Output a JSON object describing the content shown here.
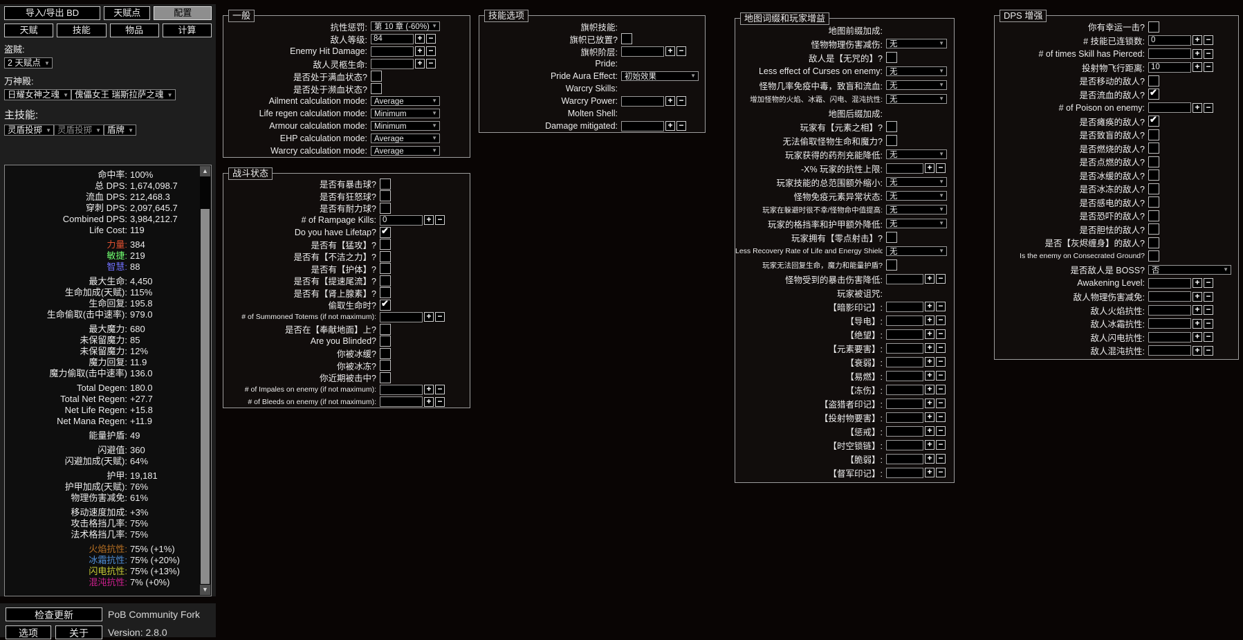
{
  "colors": {
    "str": "#E05030",
    "dex": "#70FF70",
    "int": "#7070FF",
    "fire": "#B97123",
    "cold": "#4F8FD8",
    "lightning": "#C8CC35",
    "chaos": "#D02090"
  },
  "sidebar": {
    "top_buttons": [
      {
        "label": "导入/导出 BD"
      },
      {
        "label": "天赋点"
      },
      {
        "label": "配置",
        "selected": true
      }
    ],
    "tabs": [
      "天赋",
      "技能",
      "物品",
      "计算"
    ],
    "selectors": [
      {
        "label": "盗贼:",
        "dropdowns": [
          {
            "value": "2 天赋点"
          }
        ]
      },
      {
        "label": "万神殿:",
        "dropdowns": [
          {
            "value": "日耀女神之魂"
          },
          {
            "value": "傀儡女王 瑞斯拉萨之魂"
          }
        ]
      },
      {
        "label": "主技能:",
        "large": true,
        "dropdowns": [
          {
            "value": "灵盾投掷"
          },
          {
            "value": "灵盾投掷",
            "dim": true
          },
          {
            "value": "盾牌",
            "narrow": true
          }
        ]
      }
    ],
    "stats": [
      [
        {
          "l": "命中率:",
          "v": "100%"
        },
        {
          "l": "总 DPS:",
          "v": "1,674,098.7"
        },
        {
          "l": "流血 DPS:",
          "v": "212,468.3"
        },
        {
          "l": "穿刺 DPS:",
          "v": "2,097,645.7"
        },
        {
          "l": "Combined DPS:",
          "v": "3,984,212.7"
        },
        {
          "l": "Life Cost:",
          "v": "119"
        }
      ],
      [
        {
          "l": "力量:",
          "v": "384",
          "c": "str"
        },
        {
          "l": "敏捷:",
          "v": "219",
          "c": "dex"
        },
        {
          "l": "智慧:",
          "v": "88",
          "c": "int"
        }
      ],
      [
        {
          "l": "最大生命:",
          "v": "4,450"
        },
        {
          "l": "生命加成(天赋):",
          "v": "115%"
        },
        {
          "l": "生命回复:",
          "v": "195.8"
        },
        {
          "l": "生命偷取(击中速率):",
          "v": "979.0"
        }
      ],
      [
        {
          "l": "最大魔力:",
          "v": "680"
        },
        {
          "l": "未保留魔力:",
          "v": "85"
        },
        {
          "l": "未保留魔力:",
          "v": "12%"
        },
        {
          "l": "魔力回复:",
          "v": "11.9"
        },
        {
          "l": "魔力偷取(击中速率)",
          "v": "136.0"
        }
      ],
      [
        {
          "l": "Total Degen:",
          "v": "180.0"
        },
        {
          "l": "Total Net Regen:",
          "v": "+27.7"
        },
        {
          "l": "Net Life Regen:",
          "v": "+15.8"
        },
        {
          "l": "Net Mana Regen:",
          "v": "+11.9"
        }
      ],
      [
        {
          "l": "能量护盾:",
          "v": "49"
        }
      ],
      [
        {
          "l": "闪避值:",
          "v": "360"
        },
        {
          "l": "闪避加成(天赋):",
          "v": "64%"
        }
      ],
      [
        {
          "l": "护甲:",
          "v": "19,181"
        },
        {
          "l": "护甲加成(天赋):",
          "v": "76%"
        },
        {
          "l": "物理伤害减免:",
          "v": "61%"
        }
      ],
      [
        {
          "l": "移动速度加成:",
          "v": "+3%"
        },
        {
          "l": "攻击格挡几率:",
          "v": "75%"
        },
        {
          "l": "法术格挡几率:",
          "v": "75%"
        }
      ],
      [
        {
          "l": "火焰抗性:",
          "v": "75% (+1%)",
          "c": "fire"
        },
        {
          "l": "冰霜抗性:",
          "v": "75% (+20%)",
          "c": "cold"
        },
        {
          "l": "闪电抗性:",
          "v": "75% (+13%)",
          "c": "lightning"
        },
        {
          "l": "混沌抗性:",
          "v": "7% (+0%)",
          "c": "chaos"
        }
      ]
    ],
    "footer": {
      "update_button": "检查更新",
      "brand": "PoB Community Fork",
      "options_button": "选项",
      "about_button": "关于",
      "version": "Version: 2.8.0"
    }
  },
  "sections": [
    {
      "id": "general",
      "title": "一般",
      "rows": [
        {
          "label": "抗性惩罚:",
          "type": "dd",
          "value": "第 10 章 (-60%)"
        },
        {
          "label": "敌人等级:",
          "type": "num",
          "value": "84"
        },
        {
          "label": "Enemy Hit Damage:",
          "type": "num",
          "value": ""
        },
        {
          "label": "敌人灵柩生命:",
          "type": "num",
          "value": ""
        },
        {
          "label": "是否处于满血状态?",
          "type": "check",
          "checked": false
        },
        {
          "label": "是否处于濒血状态?",
          "type": "check",
          "checked": false
        },
        {
          "label": "Ailment calculation mode:",
          "type": "dd",
          "value": "Average"
        },
        {
          "label": "Life regen calculation mode:",
          "type": "dd",
          "value": "Minimum"
        },
        {
          "label": "Armour calculation mode:",
          "type": "dd",
          "value": "Minimum"
        },
        {
          "label": "EHP calculation mode:",
          "type": "dd",
          "value": "Average"
        },
        {
          "label": "Warcry calculation mode:",
          "type": "dd",
          "value": "Average"
        }
      ]
    },
    {
      "id": "combat",
      "title": "战斗状态",
      "rows": [
        {
          "label": "是否有暴击球?",
          "type": "check",
          "checked": false
        },
        {
          "label": "是否有狂怒球?",
          "type": "check",
          "checked": false
        },
        {
          "label": "是否有耐力球?",
          "type": "check",
          "checked": false
        },
        {
          "label": "# of Rampage Kills:",
          "type": "num",
          "value": "0"
        },
        {
          "label": "Do you have Lifetap?",
          "type": "check",
          "checked": true
        },
        {
          "label": "是否有【猛攻】?",
          "type": "check",
          "checked": false
        },
        {
          "label": "是否有【不洁之力】?",
          "type": "check",
          "checked": false
        },
        {
          "label": "是否有【护体】?",
          "type": "check",
          "checked": false
        },
        {
          "label": "是否有【提速尾流】?",
          "type": "check",
          "checked": false
        },
        {
          "label": "是否有【肾上腺素】?",
          "type": "check",
          "checked": false
        },
        {
          "label": "偷取生命时?",
          "type": "check",
          "checked": true
        },
        {
          "label": "# of Summoned Totems (if not maximum):",
          "type": "num",
          "value": "",
          "sm": true
        },
        {
          "label": "是否在【奉献地面】上?",
          "type": "check",
          "checked": false
        },
        {
          "label": "Are you Blinded?",
          "type": "check",
          "checked": false
        },
        {
          "label": "你被冰缓?",
          "type": "check",
          "checked": false
        },
        {
          "label": "你被冰冻?",
          "type": "check",
          "checked": false
        },
        {
          "label": "你近期被击中?",
          "type": "check",
          "checked": false
        },
        {
          "label": "# of Impales on enemy (if not maximum):",
          "type": "num",
          "value": "",
          "sm": true
        },
        {
          "label": "# of Bleeds on enemy (if not maximum):",
          "type": "num",
          "value": "",
          "sm": true
        }
      ]
    },
    {
      "id": "skill",
      "title": "技能选项",
      "rows": [
        {
          "label": "旗帜技能:",
          "type": "none"
        },
        {
          "label": "旗帜已放置?",
          "type": "check",
          "checked": false
        },
        {
          "label": "旗帜阶层:",
          "type": "num",
          "value": ""
        },
        {
          "label": "Pride:",
          "type": "none"
        },
        {
          "label": "Pride Aura Effect:",
          "type": "dd",
          "value": "初始效果"
        },
        {
          "label": "Warcry Skills:",
          "type": "none"
        },
        {
          "label": "Warcry Power:",
          "type": "num",
          "value": ""
        },
        {
          "label": "Molten Shell:",
          "type": "none"
        },
        {
          "label": "Damage mitigated:",
          "type": "num",
          "value": ""
        }
      ]
    },
    {
      "id": "map",
      "title": "地图词缀和玩家增益",
      "rows": [
        {
          "label": "地图前缀加成:",
          "type": "none"
        },
        {
          "label": "怪物物理伤害减伤:",
          "type": "dd",
          "value": "无"
        },
        {
          "label": "敌人是【无咒的】?",
          "type": "check",
          "checked": false
        },
        {
          "label": "Less effect of Curses on enemy:",
          "type": "dd",
          "value": "无"
        },
        {
          "label": "怪物几率免疫中毒，致盲和流血:",
          "type": "dd",
          "value": "无"
        },
        {
          "label": "增加怪物的火焰、冰霜、闪电、混沌抗性:",
          "type": "dd",
          "value": "无",
          "sm": true
        },
        {
          "label": "地图后缀加成:",
          "type": "none"
        },
        {
          "label": "玩家有【元素之相】?",
          "type": "check",
          "checked": false
        },
        {
          "label": "无法偷取怪物生命和魔力?",
          "type": "check",
          "checked": false
        },
        {
          "label": "玩家获得的药剂充能降低:",
          "type": "dd",
          "value": "无"
        },
        {
          "label": "-X% 玩家的抗性上限:",
          "type": "num",
          "value": ""
        },
        {
          "label": "玩家技能的总范围额外缩小:",
          "type": "dd",
          "value": "无"
        },
        {
          "label": "怪物免疫元素异常状态:",
          "type": "dd",
          "value": "无"
        },
        {
          "label": "玩家在躲避时很不幸/怪物命中值提高:",
          "type": "dd",
          "value": "无",
          "sm": true
        },
        {
          "label": "玩家的格挡率和护甲额外降低:",
          "type": "dd",
          "value": "无"
        },
        {
          "label": "玩家拥有【零点射击】?",
          "type": "check",
          "checked": false
        },
        {
          "label": "Less Recovery Rate of Life and Energy Shield:",
          "type": "dd",
          "value": "无",
          "sm": true
        },
        {
          "label": "玩家无法回复生命，魔力和能量护盾?",
          "type": "check",
          "checked": false,
          "sm": true
        },
        {
          "label": "怪物受到的暴击伤害降低:",
          "type": "num",
          "value": ""
        },
        {
          "label": "玩家被诅咒:",
          "type": "none"
        },
        {
          "label": "【暗影印记】:",
          "type": "num",
          "value": ""
        },
        {
          "label": "【导电】:",
          "type": "num",
          "value": ""
        },
        {
          "label": "【绝望】:",
          "type": "num",
          "value": ""
        },
        {
          "label": "【元素要害】:",
          "type": "num",
          "value": ""
        },
        {
          "label": "【衰弱】:",
          "type": "num",
          "value": ""
        },
        {
          "label": "【易燃】:",
          "type": "num",
          "value": ""
        },
        {
          "label": "【冻伤】:",
          "type": "num",
          "value": ""
        },
        {
          "label": "【盗猎者印记】:",
          "type": "num",
          "value": ""
        },
        {
          "label": "【投射物要害】:",
          "type": "num",
          "value": ""
        },
        {
          "label": "【惩戒】:",
          "type": "num",
          "value": ""
        },
        {
          "label": "【时空锁链】:",
          "type": "num",
          "value": ""
        },
        {
          "label": "【脆弱】:",
          "type": "num",
          "value": ""
        },
        {
          "label": "【督军印记】:",
          "type": "num",
          "value": ""
        }
      ]
    },
    {
      "id": "dps",
      "title": "DPS 增强",
      "rows": [
        {
          "label": "你有幸运一击?",
          "type": "check",
          "checked": false
        },
        {
          "label": "# 技能已连锁数:",
          "type": "num",
          "value": "0"
        },
        {
          "label": "# of times Skill has Pierced:",
          "type": "num",
          "value": ""
        },
        {
          "label": "投射物飞行距离:",
          "type": "num",
          "value": "10"
        },
        {
          "label": "是否移动的敌人?",
          "type": "check",
          "checked": false
        },
        {
          "label": "是否流血的敌人?",
          "type": "check",
          "checked": true
        },
        {
          "label": "# of Poison on enemy:",
          "type": "num",
          "value": ""
        },
        {
          "label": "是否瘫痪的敌人?",
          "type": "check",
          "checked": true
        },
        {
          "label": "是否致盲的敌人?",
          "type": "check",
          "checked": false
        },
        {
          "label": "是否燃烧的敌人?",
          "type": "check",
          "checked": false
        },
        {
          "label": "是否点燃的敌人?",
          "type": "check",
          "checked": false
        },
        {
          "label": "是否冰缓的敌人?",
          "type": "check",
          "checked": false
        },
        {
          "label": "是否冰冻的敌人?",
          "type": "check",
          "checked": false
        },
        {
          "label": "是否感电的敌人?",
          "type": "check",
          "checked": false
        },
        {
          "label": "是否恐吓的敌人?",
          "type": "check",
          "checked": false
        },
        {
          "label": "是否胆怯的敌人?",
          "type": "check",
          "checked": false
        },
        {
          "label": "是否【灰烬缠身】的敌人?",
          "type": "check",
          "checked": false
        },
        {
          "label": "Is the enemy on Consecrated Ground?",
          "type": "check",
          "checked": false,
          "sm": true
        },
        {
          "label": "是否敌人是 BOSS?",
          "type": "dd",
          "value": "否"
        },
        {
          "label": "Awakening Level:",
          "type": "num",
          "value": ""
        },
        {
          "label": "敌人物理伤害减免:",
          "type": "num",
          "value": ""
        },
        {
          "label": "敌人火焰抗性:",
          "type": "num",
          "value": ""
        },
        {
          "label": "敌人冰霜抗性:",
          "type": "num",
          "value": ""
        },
        {
          "label": "敌人闪电抗性:",
          "type": "num",
          "value": ""
        },
        {
          "label": "敌人混沌抗性:",
          "type": "num",
          "value": ""
        }
      ]
    }
  ]
}
